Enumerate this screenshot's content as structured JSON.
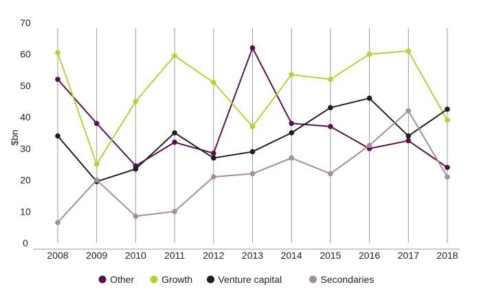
{
  "chart_data": {
    "type": "line",
    "title": "",
    "xlabel": "",
    "ylabel": "$bn",
    "ylim": [
      0,
      70
    ],
    "yticks": [
      0,
      10,
      20,
      30,
      40,
      50,
      60,
      70
    ],
    "grid": "vertical",
    "legend_position": "bottom",
    "x": [
      "2008",
      "2009",
      "2010",
      "2011",
      "2012",
      "2013",
      "2014",
      "2015",
      "2016",
      "2017",
      "2018"
    ],
    "series": [
      {
        "name": "Other",
        "color": "#5c0f4e",
        "values": [
          52,
          38,
          24.5,
          32,
          28.5,
          62,
          38,
          37,
          30,
          32.5,
          24
        ]
      },
      {
        "name": "Growth",
        "color": "#b5d334",
        "values": [
          60.5,
          25,
          45,
          59.5,
          51,
          37,
          53.5,
          52,
          60,
          61,
          39
        ]
      },
      {
        "name": "Venture capital",
        "color": "#1e1e1e",
        "values": [
          34,
          19.5,
          23.5,
          35,
          27,
          29,
          35,
          43,
          46,
          34,
          42.5
        ]
      },
      {
        "name": "Secondaries",
        "color": "#a38da0",
        "values": [
          6.5,
          20,
          8.5,
          10,
          21,
          22,
          27,
          22,
          31,
          42,
          21
        ]
      }
    ]
  }
}
